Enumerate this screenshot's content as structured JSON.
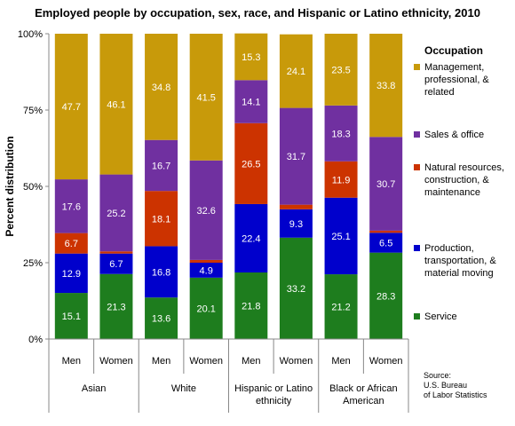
{
  "chart_data": {
    "type": "bar",
    "stacked": true,
    "title": "Employed people by occupation, sex, race, and Hispanic or Latino ethnicity, 2010",
    "ylabel": "Percent distribution",
    "ylim": [
      0,
      100
    ],
    "yticks": [
      "0%",
      "25%",
      "50%",
      "75%",
      "100%"
    ],
    "categories": [
      "Men",
      "Women",
      "Men",
      "Women",
      "Men",
      "Women",
      "Men",
      "Women"
    ],
    "groups": [
      "Asian",
      "White",
      "Hispanic or Latino ethnicity",
      "Black or African American"
    ],
    "legend_title": "Occupation",
    "series": [
      {
        "name": "Service",
        "color": "#1e7d1e",
        "values": [
          15.1,
          21.3,
          13.6,
          20.1,
          21.8,
          33.2,
          21.2,
          28.3
        ]
      },
      {
        "name": "Production, transportation, & material moving",
        "color": "#0000cc",
        "values": [
          12.9,
          6.7,
          16.8,
          4.9,
          22.4,
          9.3,
          25.1,
          6.5
        ]
      },
      {
        "name": "Natural resources, construction, & maintenance",
        "color": "#cc3300",
        "values": [
          6.7,
          0.7,
          18.1,
          0.9,
          26.5,
          1.5,
          11.9,
          0.7
        ]
      },
      {
        "name": "Sales & office",
        "color": "#7030a0",
        "values": [
          17.6,
          25.2,
          16.7,
          32.6,
          14.1,
          31.7,
          18.3,
          30.7
        ]
      },
      {
        "name": "Management, professional, & related",
        "color": "#c89a0a",
        "values": [
          47.7,
          46.1,
          34.8,
          41.5,
          15.3,
          24.1,
          23.5,
          33.8
        ]
      }
    ],
    "data_labels": [
      [
        "15.1",
        "21.3",
        "13.6",
        "20.1",
        "21.8",
        "33.2",
        "21.2",
        "28.3"
      ],
      [
        "12.9",
        "6.7",
        "16.8",
        "4.9",
        "22.4",
        "9.3",
        "25.1",
        "6.5"
      ],
      [
        "6.7",
        "",
        "18.1",
        "",
        "26.5",
        "",
        "11.9",
        ""
      ],
      [
        "17.6",
        "25.2",
        "16.7",
        "32.6",
        "14.1",
        "31.7",
        "18.3",
        "30.7"
      ],
      [
        "47.7",
        "46.1",
        "34.8",
        "41.5",
        "15.3",
        "24.1",
        "23.5",
        "33.8"
      ]
    ],
    "legend_placement": "right",
    "grid": false
  },
  "legend_order": [
    4,
    3,
    2,
    1,
    0
  ],
  "source": [
    "Source:",
    "U.S. Bureau",
    "of Labor Statistics"
  ]
}
